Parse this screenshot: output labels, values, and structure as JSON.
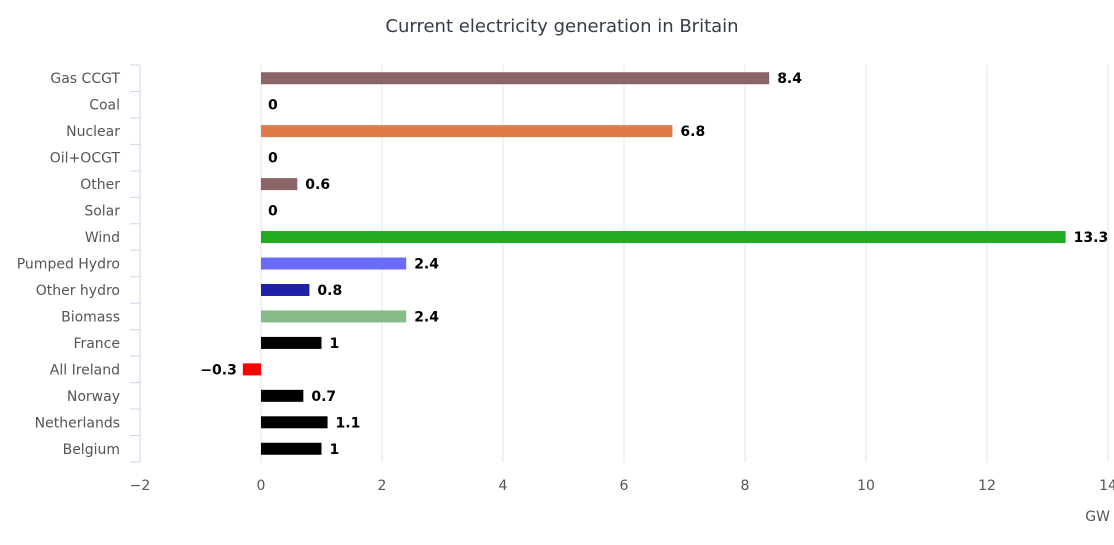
{
  "chart_data": {
    "type": "bar",
    "orientation": "horizontal",
    "title": "Current electricity generation in Britain",
    "xlabel": "GW",
    "ylabel": "",
    "xlim": [
      -2,
      14
    ],
    "xticks": [
      -2,
      0,
      2,
      4,
      6,
      8,
      10,
      12,
      14
    ],
    "xtick_labels": [
      "−2",
      "0",
      "2",
      "4",
      "6",
      "8",
      "10",
      "12",
      "14"
    ],
    "grid": true,
    "categories": [
      "Gas CCGT",
      "Coal",
      "Nuclear",
      "Oil+OCGT",
      "Other",
      "Solar",
      "Wind",
      "Pumped Hydro",
      "Other hydro",
      "Biomass",
      "France",
      "All Ireland",
      "Norway",
      "Netherlands",
      "Belgium"
    ],
    "values": [
      8.4,
      0,
      6.8,
      0,
      0.6,
      0,
      13.3,
      2.4,
      0.8,
      2.4,
      1,
      -0.3,
      0.7,
      1.1,
      1
    ],
    "value_labels": [
      "8.4",
      "0",
      "6.8",
      "0",
      "0.6",
      "0",
      "13.3",
      "2.4",
      "0.8",
      "2.4",
      "1",
      "−0.3",
      "0.7",
      "1.1",
      "1"
    ],
    "colors": [
      "#8b6565",
      "#000000",
      "#e07b48",
      "#000000",
      "#8b6565",
      "#ffd700",
      "#22aa22",
      "#6a6aff",
      "#1f1fa8",
      "#88bb88",
      "#000000",
      "#ff0000",
      "#000000",
      "#000000",
      "#000000"
    ]
  }
}
